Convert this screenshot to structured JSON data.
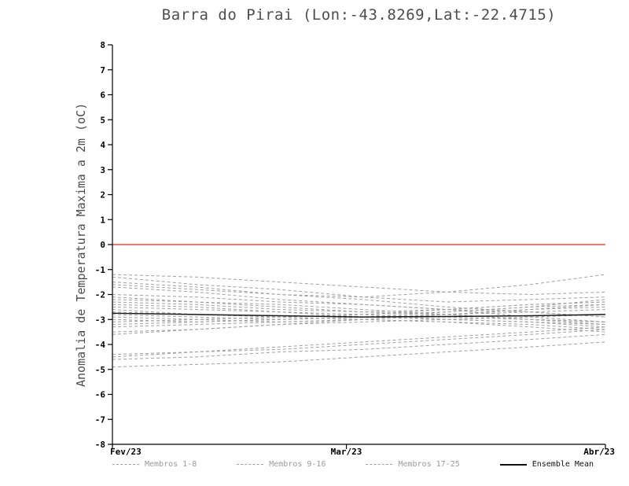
{
  "chart_data": {
    "type": "line",
    "title": "Barra do Pirai (Lon:-43.8269,Lat:-22.4715)",
    "ylabel": "Anomalia de Temperatura Maxima a 2m (oC)",
    "xlabel": "",
    "ylim": [
      -8,
      8
    ],
    "ytick_step": 1,
    "x_range": [
      0,
      59
    ],
    "x_days": [
      0,
      10,
      20,
      30,
      40,
      50,
      59
    ],
    "xticks": [
      {
        "pos": 0,
        "label": "Fev/23"
      },
      {
        "pos": 28,
        "label": "Mar/23"
      },
      {
        "pos": 59,
        "label": "Abr/23"
      }
    ],
    "grid": false,
    "zero_line": {
      "value": 0,
      "color": "#f34f3c"
    },
    "member_color": "#a0a0a0",
    "mean_color": "#1a1a1a",
    "series": [
      {
        "name": "Membro 1",
        "values": [
          -1.2,
          -1.3,
          -1.5,
          -1.7,
          -1.9,
          -2.0,
          -1.9
        ]
      },
      {
        "name": "Membro 2",
        "values": [
          -1.3,
          -1.6,
          -1.8,
          -2.1,
          -2.3,
          -2.2,
          -2.1
        ]
      },
      {
        "name": "Membro 3",
        "values": [
          -1.5,
          -1.7,
          -2.0,
          -2.2,
          -2.5,
          -2.7,
          -2.9
        ]
      },
      {
        "name": "Membro 4",
        "values": [
          -1.6,
          -1.8,
          -2.0,
          -2.1,
          -1.9,
          -1.6,
          -1.2
        ]
      },
      {
        "name": "Membro 5",
        "values": [
          -1.7,
          -1.9,
          -2.2,
          -2.4,
          -2.6,
          -2.9,
          -3.1
        ]
      },
      {
        "name": "Membro 6",
        "values": [
          -2.0,
          -2.1,
          -2.3,
          -2.4,
          -2.6,
          -2.7,
          -2.9
        ]
      },
      {
        "name": "Membro 7",
        "values": [
          -2.1,
          -2.3,
          -2.4,
          -2.6,
          -2.8,
          -3.0,
          -3.2
        ]
      },
      {
        "name": "Membro 8",
        "values": [
          -2.2,
          -2.3,
          -2.5,
          -2.7,
          -2.8,
          -3.0,
          -3.1
        ]
      },
      {
        "name": "Membro 9",
        "values": [
          -2.3,
          -2.4,
          -2.6,
          -2.7,
          -2.6,
          -2.4,
          -2.3
        ]
      },
      {
        "name": "Membro 10",
        "values": [
          -2.4,
          -2.5,
          -2.7,
          -2.8,
          -3.0,
          -3.1,
          -3.3
        ]
      },
      {
        "name": "Membro 11",
        "values": [
          -2.5,
          -2.6,
          -2.7,
          -2.9,
          -3.0,
          -3.1,
          -3.2
        ]
      },
      {
        "name": "Membro 12",
        "values": [
          -2.6,
          -2.8,
          -2.9,
          -3.0,
          -3.1,
          -3.3,
          -3.5
        ]
      },
      {
        "name": "Membro 13",
        "values": [
          -2.7,
          -2.8,
          -2.9,
          -2.8,
          -2.7,
          -2.5,
          -2.2
        ]
      },
      {
        "name": "Membro 14",
        "values": [
          -2.8,
          -2.9,
          -3.0,
          -2.9,
          -2.7,
          -2.5,
          -2.4
        ]
      },
      {
        "name": "Membro 15",
        "values": [
          -2.9,
          -3.0,
          -3.1,
          -3.0,
          -2.8,
          -2.6,
          -2.5
        ]
      },
      {
        "name": "Membro 16",
        "values": [
          -3.0,
          -3.1,
          -3.0,
          -2.9,
          -2.8,
          -2.7,
          -2.6
        ]
      },
      {
        "name": "Membro 17",
        "values": [
          -3.1,
          -3.0,
          -2.9,
          -2.8,
          -2.6,
          -2.4,
          -2.3
        ]
      },
      {
        "name": "Membro 18",
        "values": [
          -3.2,
          -3.1,
          -3.0,
          -2.9,
          -2.9,
          -3.0,
          -3.1
        ]
      },
      {
        "name": "Membro 19",
        "values": [
          -3.3,
          -3.2,
          -3.1,
          -3.0,
          -3.1,
          -3.2,
          -3.4
        ]
      },
      {
        "name": "Membro 20",
        "values": [
          -3.5,
          -3.4,
          -3.2,
          -3.1,
          -3.0,
          -2.9,
          -2.8
        ]
      },
      {
        "name": "Membro 21",
        "values": [
          -3.6,
          -3.4,
          -3.2,
          -3.0,
          -2.8,
          -2.6,
          -2.4
        ]
      },
      {
        "name": "Membro 22",
        "values": [
          -4.4,
          -4.3,
          -4.1,
          -3.9,
          -3.7,
          -3.5,
          -3.3
        ]
      },
      {
        "name": "Membro 23",
        "values": [
          -4.5,
          -4.3,
          -4.2,
          -4.0,
          -3.8,
          -3.6,
          -3.4
        ]
      },
      {
        "name": "Membro 24",
        "values": [
          -4.6,
          -4.5,
          -4.3,
          -4.2,
          -4.0,
          -3.8,
          -3.6
        ]
      },
      {
        "name": "Membro 25",
        "values": [
          -4.9,
          -4.8,
          -4.7,
          -4.5,
          -4.3,
          -4.1,
          -3.9
        ]
      }
    ],
    "mean_series": {
      "name": "Ensemble Mean",
      "values": [
        -2.75,
        -2.8,
        -2.85,
        -2.9,
        -2.88,
        -2.85,
        -2.8
      ]
    }
  },
  "legend": {
    "items": [
      {
        "label": "Membros 1-8",
        "style": "dashed"
      },
      {
        "label": "Membros 9-16",
        "style": "dashed"
      },
      {
        "label": "Membros 17-25",
        "style": "dashed"
      },
      {
        "label": "Ensemble Mean",
        "style": "solid"
      }
    ]
  }
}
